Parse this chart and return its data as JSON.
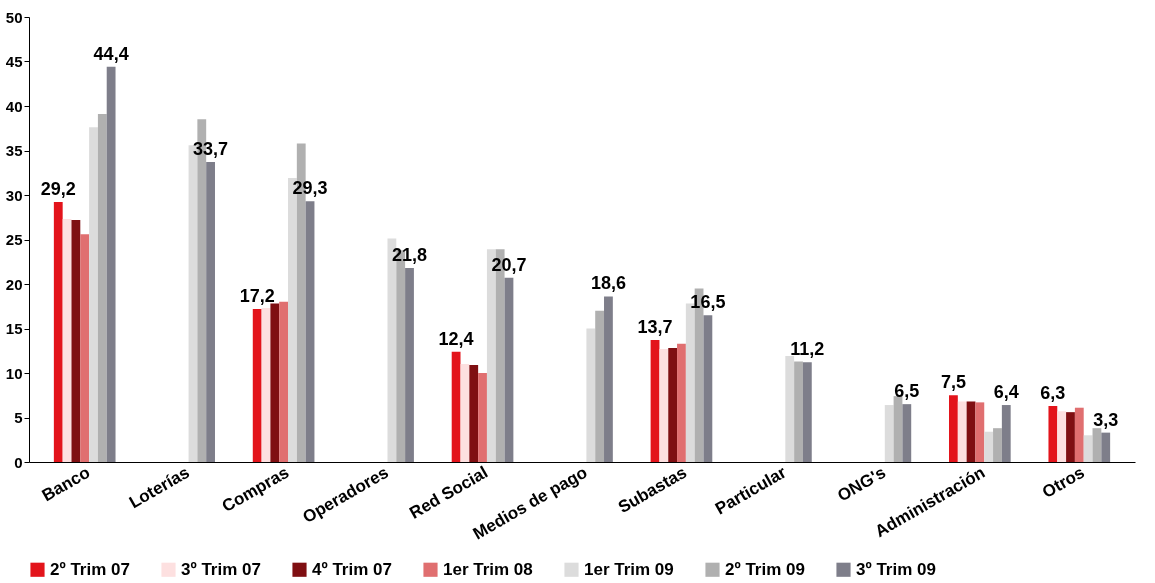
{
  "chart_data": {
    "type": "bar",
    "categories": [
      "Banco",
      "Loterías",
      "Compras",
      "Operadores",
      "Red Social",
      "Medios de pago",
      "Subastas",
      "Particular",
      "ONG's",
      "Administración",
      "Otros"
    ],
    "ylim": [
      0,
      50
    ],
    "yticks": [
      0,
      5,
      10,
      15,
      20,
      25,
      30,
      35,
      40,
      45,
      50
    ],
    "grid": false,
    "legend": "bottom",
    "series": [
      {
        "name": "2º Trim 07",
        "color": "#e3141b",
        "values": [
          29.2,
          null,
          17.2,
          null,
          12.4,
          null,
          13.7,
          null,
          null,
          7.5,
          6.3
        ],
        "value_labels": [
          "29,2",
          null,
          "17,2",
          null,
          "12,4",
          null,
          "13,7",
          null,
          null,
          "7,5",
          "6,3"
        ]
      },
      {
        "name": "3º Trim 07",
        "color": "#fde0e0",
        "values": [
          27.3,
          null,
          17.3,
          null,
          11.0,
          null,
          12.7,
          null,
          null,
          6.8,
          5.7
        ]
      },
      {
        "name": "4º Trim 07",
        "color": "#7f0f12",
        "values": [
          27.2,
          null,
          17.8,
          null,
          10.9,
          null,
          12.8,
          null,
          null,
          6.8,
          5.6
        ]
      },
      {
        "name": "1er Trim 08",
        "color": "#e06f70",
        "values": [
          25.6,
          null,
          18.0,
          null,
          10.0,
          null,
          13.3,
          null,
          null,
          6.7,
          6.1
        ]
      },
      {
        "name": "1er Trim 09",
        "color": "#dcdcdc",
        "values": [
          37.6,
          35.6,
          31.9,
          25.1,
          23.9,
          15.0,
          17.8,
          11.9,
          6.4,
          3.4,
          3.0
        ]
      },
      {
        "name": "2º Trim 09",
        "color": "#b0b0b0",
        "values": [
          39.1,
          38.5,
          35.8,
          23.8,
          23.9,
          17.0,
          19.5,
          11.3,
          7.4,
          3.8,
          3.8
        ]
      },
      {
        "name": "3º Trim 09",
        "color": "#7e7e8a",
        "values": [
          44.4,
          33.7,
          29.3,
          21.8,
          20.7,
          18.6,
          16.5,
          11.2,
          6.5,
          6.4,
          3.3
        ],
        "value_labels": [
          "44,4",
          "33,7",
          "29,3",
          "21,8",
          "20,7",
          "18,6",
          "16,5",
          "11,2",
          "6,5",
          "6,4",
          "3,3"
        ]
      }
    ]
  }
}
